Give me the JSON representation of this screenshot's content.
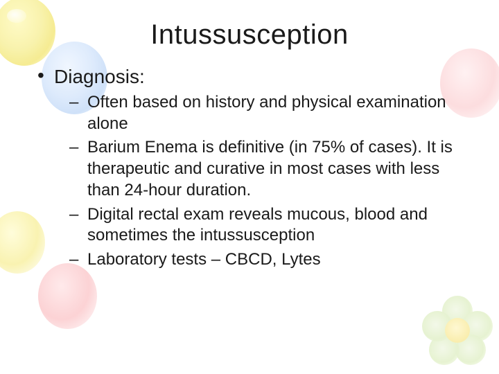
{
  "slide": {
    "title": "Intussusception",
    "colors": {
      "background": "#ffffff",
      "text": "#1a1a1a",
      "balloon_yellow": "#f4e96a",
      "balloon_blue": "#bcd6f9",
      "balloon_pink": "#f9aeb2",
      "flower_petal": "#cfe7a5",
      "flower_center": "#f5dd5e"
    },
    "typography": {
      "title_fontsize": 40,
      "level1_fontsize": 28,
      "level2_fontsize": 24,
      "font_family": "Verdana"
    },
    "bullets": [
      {
        "label": "Diagnosis:",
        "children": [
          "Often based on history and physical examination alone",
          "Barium Enema is definitive (in 75% of cases).  It is therapeutic and curative in most cases with less than 24-hour duration.",
          "Digital rectal exam reveals mucous, blood and sometimes the intussusception",
          "Laboratory tests – CBCD, Lytes"
        ]
      }
    ]
  }
}
